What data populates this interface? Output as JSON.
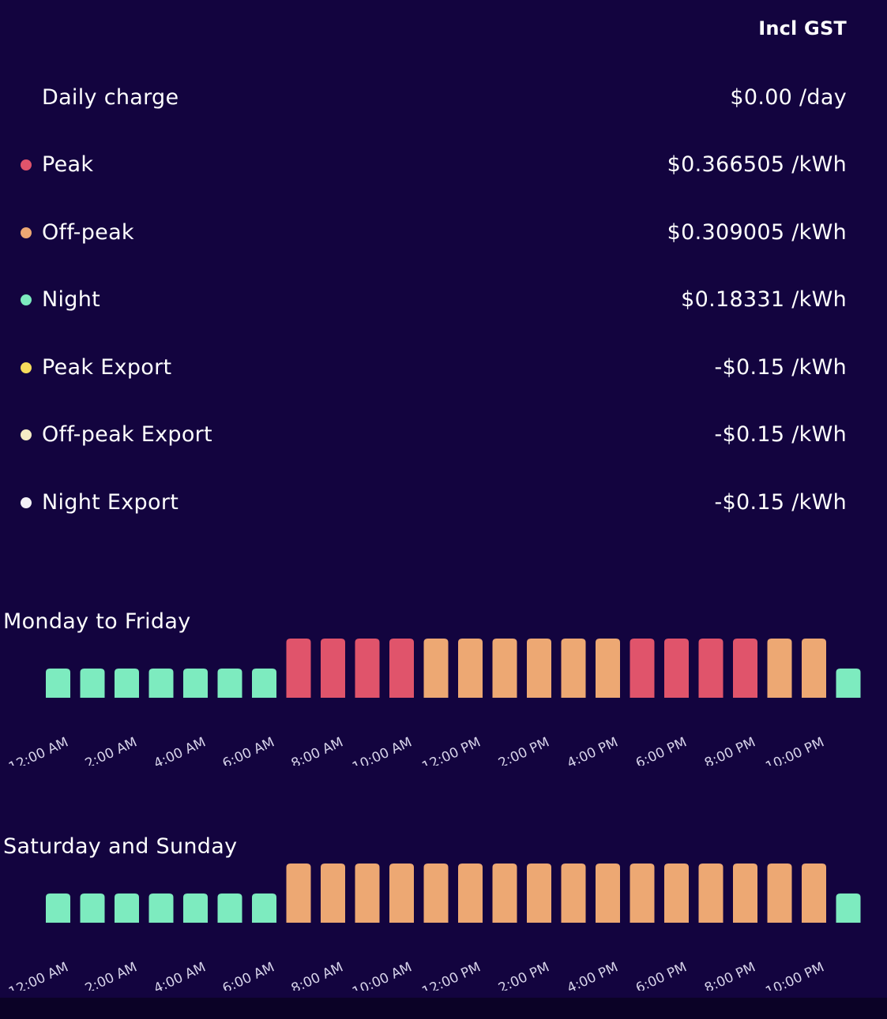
{
  "header": {
    "gst_label": "Incl GST"
  },
  "rates": [
    {
      "label": "Daily charge",
      "value": "$0.00 /day",
      "dot_color": null
    },
    {
      "label": "Peak",
      "value": "$0.366505 /kWh",
      "dot_color": "#e0546b"
    },
    {
      "label": "Off-peak",
      "value": "$0.309005 /kWh",
      "dot_color": "#eda873"
    },
    {
      "label": "Night",
      "value": "$0.18331 /kWh",
      "dot_color": "#7debbf"
    },
    {
      "label": "Peak Export",
      "value": "-$0.15 /kWh",
      "dot_color": "#f7dc5c"
    },
    {
      "label": "Off-peak Export",
      "value": "-$0.15 /kWh",
      "dot_color": "#f6ecc5"
    },
    {
      "label": "Night Export",
      "value": "-$0.15 /kWh",
      "dot_color": "#f4f2f7"
    }
  ],
  "colors": {
    "background": "#13043f",
    "peak": "#e0546b",
    "offpeak": "#eda873",
    "night": "#7debbf"
  },
  "schedules": [
    {
      "title": "Monday to Friday",
      "tick_labels": [
        "12:00 AM",
        "2:00 AM",
        "4:00 AM",
        "6:00 AM",
        "8:00 AM",
        "10:00 AM",
        "12:00 PM",
        "2:00 PM",
        "4:00 PM",
        "6:00 PM",
        "8:00 PM",
        "10:00 PM"
      ],
      "hours": [
        "night",
        "night",
        "night",
        "night",
        "night",
        "night",
        "night",
        "peak",
        "peak",
        "peak",
        "peak",
        "offpeak",
        "offpeak",
        "offpeak",
        "offpeak",
        "offpeak",
        "offpeak",
        "peak",
        "peak",
        "peak",
        "peak",
        "offpeak",
        "offpeak",
        "night"
      ]
    },
    {
      "title": "Saturday and Sunday",
      "tick_labels": [
        "12:00 AM",
        "2:00 AM",
        "4:00 AM",
        "6:00 AM",
        "8:00 AM",
        "10:00 AM",
        "12:00 PM",
        "2:00 PM",
        "4:00 PM",
        "6:00 PM",
        "8:00 PM",
        "10:00 PM"
      ],
      "hours": [
        "night",
        "night",
        "night",
        "night",
        "night",
        "night",
        "night",
        "offpeak",
        "offpeak",
        "offpeak",
        "offpeak",
        "offpeak",
        "offpeak",
        "offpeak",
        "offpeak",
        "offpeak",
        "offpeak",
        "offpeak",
        "offpeak",
        "offpeak",
        "offpeak",
        "offpeak",
        "offpeak",
        "night"
      ]
    }
  ]
}
